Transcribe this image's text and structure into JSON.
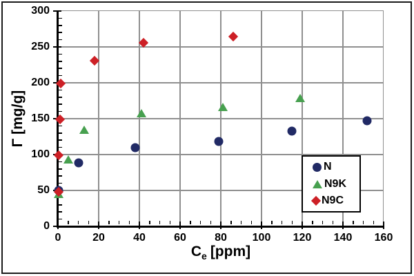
{
  "chart_data": {
    "type": "scatter",
    "title": "",
    "xlabel": {
      "base": "C",
      "sub": "e",
      "rest": "[ppm]",
      "text": "Ce [ppm]"
    },
    "ylabel": "Γ [mg/g]",
    "xlim": [
      0,
      160
    ],
    "ylim": [
      0,
      300
    ],
    "xticks": [
      0,
      20,
      40,
      60,
      80,
      100,
      120,
      140,
      160
    ],
    "yticks": [
      0,
      50,
      100,
      150,
      200,
      250,
      300
    ],
    "x_minor_step": 5,
    "y_minor_step": 10,
    "grid": true,
    "legend_position": "inside-bottom-right",
    "series": [
      {
        "name": "N",
        "marker": "circle",
        "color": "#212a65",
        "points": [
          [
            0.5,
            50
          ],
          [
            10,
            88
          ],
          [
            38,
            110
          ],
          [
            79,
            118
          ],
          [
            115,
            133
          ],
          [
            152,
            147
          ]
        ]
      },
      {
        "name": "N9K",
        "marker": "triangle",
        "color": "#47a04f",
        "points": [
          [
            0.5,
            45
          ],
          [
            5,
            93
          ],
          [
            13,
            135
          ],
          [
            41,
            158
          ],
          [
            81,
            166
          ],
          [
            119,
            179
          ]
        ]
      },
      {
        "name": "N9C",
        "marker": "diamond",
        "color": "#cd2026",
        "points": [
          [
            0.5,
            48
          ],
          [
            0.5,
            99
          ],
          [
            1,
            149
          ],
          [
            1.5,
            199
          ],
          [
            18,
            231
          ],
          [
            42,
            256
          ],
          [
            86,
            264
          ]
        ]
      }
    ]
  },
  "colors": {
    "background": "#ffffff",
    "figure_border": "#1a1a1a",
    "grid": "#8f8f8f",
    "axis": "#000000"
  }
}
